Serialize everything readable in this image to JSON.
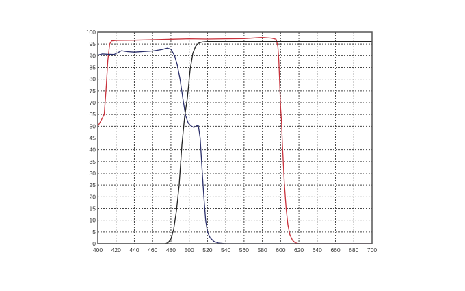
{
  "chart_data": {
    "type": "line",
    "title": "",
    "xlabel": "",
    "ylabel": "",
    "xlim": [
      400,
      700
    ],
    "x_ticks": [
      400,
      420,
      440,
      460,
      480,
      500,
      520,
      540,
      560,
      580,
      600,
      620,
      640,
      660,
      680,
      700
    ],
    "y_ticks": [
      100,
      95,
      90,
      85,
      80,
      75,
      70,
      65,
      50,
      45,
      40,
      35,
      30,
      25,
      20,
      15,
      10,
      5,
      0
    ],
    "grid": true,
    "legend": "none",
    "series": [
      {
        "color": "#c8323c",
        "x": [
          400,
          403,
          407,
          409,
          411,
          413,
          415,
          420,
          440,
          460,
          480,
          500,
          520,
          540,
          560,
          580,
          590,
          595,
          597,
          598,
          599,
          600,
          601,
          602,
          604,
          606,
          608,
          610,
          613,
          616,
          620,
          700
        ],
        "y": [
          50,
          56,
          65,
          75,
          88,
          95,
          96.3,
          96.5,
          96.6,
          96.8,
          97,
          97.2,
          97.1,
          97.2,
          97.3,
          97.8,
          97.5,
          97,
          94,
          88,
          78,
          68,
          55,
          42,
          26,
          15,
          8,
          4,
          1.5,
          0.4,
          0,
          0
        ]
      },
      {
        "color": "#2b2f6b",
        "x": [
          400,
          405,
          410,
          418,
          422,
          426,
          432,
          440,
          460,
          470,
          476,
          480,
          484,
          487,
          490,
          493,
          496,
          499,
          502,
          505,
          508,
          510,
          512,
          514,
          516,
          518,
          520,
          523,
          527,
          532,
          540,
          700
        ],
        "y": [
          90.2,
          90.7,
          90.6,
          90.5,
          91.3,
          92.1,
          91.7,
          91.5,
          92,
          92.6,
          93.2,
          92.8,
          90,
          86,
          80,
          72,
          64,
          54,
          50.5,
          49.5,
          50.5,
          51,
          45,
          32,
          20,
          10,
          5,
          2.5,
          1,
          0.3,
          0,
          0
        ]
      },
      {
        "color": "#222222",
        "x": [
          400,
          474,
          477,
          480,
          483,
          486,
          489,
          492,
          495,
          498,
          501,
          504,
          507,
          510,
          514,
          520,
          540,
          600,
          700
        ],
        "y": [
          0,
          0,
          0.5,
          2,
          6,
          14,
          25,
          42,
          62,
          72,
          84,
          91,
          94,
          95.3,
          95.8,
          96,
          96,
          96,
          96
        ]
      }
    ]
  }
}
